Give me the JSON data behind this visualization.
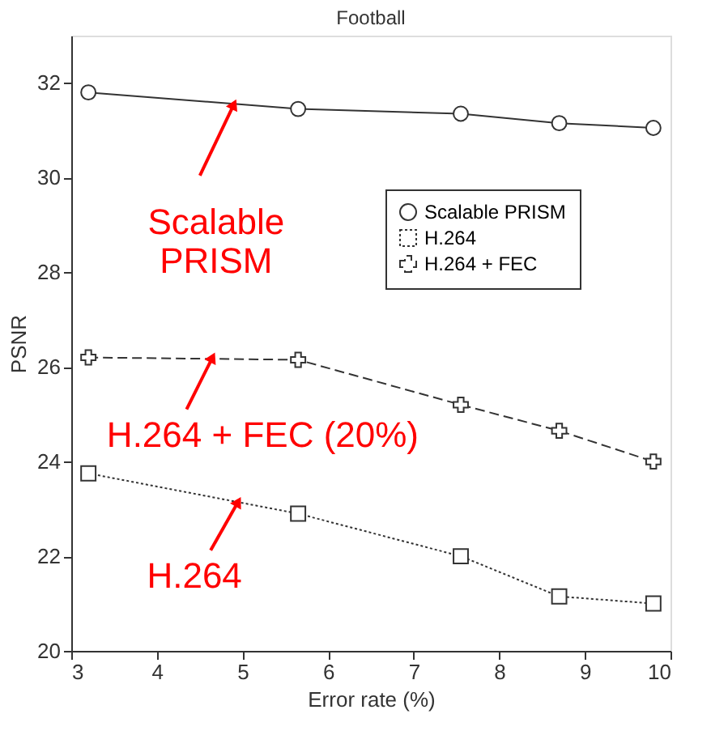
{
  "chart_data": {
    "type": "line",
    "title": "Football",
    "xlabel": "Error rate (%)",
    "ylabel": "PSNR",
    "x": [
      3.2,
      5.65,
      7.55,
      8.7,
      9.8
    ],
    "series": [
      {
        "name": "Scalable PRISM",
        "color": "#333333",
        "values": [
          31.8,
          31.45,
          31.35,
          31.15,
          31.05
        ],
        "marker": "circle",
        "line_style": "solid"
      },
      {
        "name": "H.264",
        "color": "#333333",
        "values": [
          23.75,
          22.9,
          22.0,
          21.15,
          21.0
        ],
        "marker": "square",
        "line_style": "dotted"
      },
      {
        "name": "H.264 + FEC",
        "color": "#333333",
        "values": [
          26.2,
          26.15,
          25.2,
          24.65,
          24.0
        ],
        "marker": "cross",
        "line_style": "dashed"
      }
    ],
    "annotations": [
      {
        "text": "Scalable PRISM",
        "x": 4.9,
        "y": 31.55
      },
      {
        "text": "H.264 + FEC (20%)",
        "x": 4.65,
        "y": 26.2
      },
      {
        "text": "H.264",
        "x": 4.95,
        "y": 23.15
      }
    ],
    "xlim": [
      3,
      10
    ],
    "ylim": [
      20,
      33
    ],
    "xticks": [
      3,
      4,
      5,
      6,
      7,
      8,
      9,
      10
    ],
    "yticks": [
      20,
      22,
      24,
      26,
      28,
      30,
      32
    ],
    "grid": false,
    "legend": "top right"
  }
}
